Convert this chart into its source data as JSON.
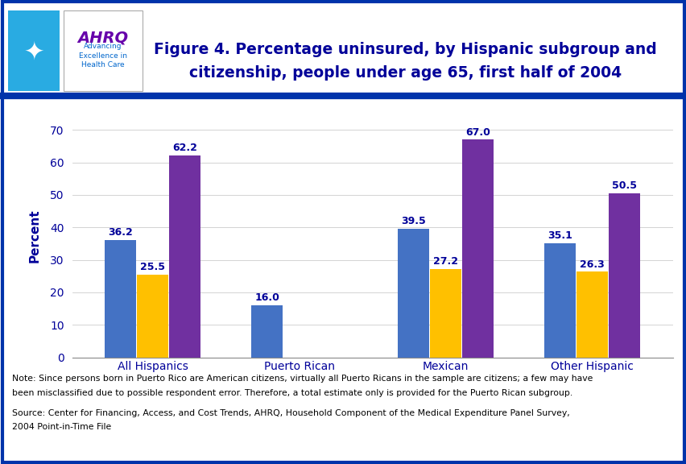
{
  "title_line1": "Figure 4. Percentage uninsured, by Hispanic subgroup and",
  "title_line2": "citizenship, people under age 65, first half of 2004",
  "categories": [
    "All Hispanics",
    "Puerto Rican",
    "Mexican",
    "Other Hispanic"
  ],
  "series": {
    "Total": [
      36.2,
      16.0,
      39.5,
      35.1
    ],
    "Citizen": [
      25.5,
      null,
      27.2,
      26.3
    ],
    "Not Citizen": [
      62.2,
      null,
      67.0,
      50.5
    ]
  },
  "colors": {
    "Total": "#4472C4",
    "Citizen": "#FFC000",
    "Not Citizen": "#7030A0"
  },
  "ylabel": "Percent",
  "ylim": [
    0,
    75
  ],
  "yticks": [
    0,
    10,
    20,
    30,
    40,
    50,
    60,
    70
  ],
  "bar_width": 0.22,
  "note_line1": "Note: Since persons born in Puerto Rico are American citizens, virtually all Puerto Ricans in the sample are citizens; a few may have",
  "note_line2": "been misclassified due to possible respondent error. Therefore, a total estimate only is provided for the Puerto Rican subgroup.",
  "source_line1": "Source: Center for Financing, Access, and Cost Trends, AHRQ, Household Component of the Medical Expenditure Panel Survey,",
  "source_line2": "2004 Point-in-Time File",
  "bg_color": "#FFFFFF",
  "outer_border_color": "#0033AA",
  "title_color": "#000099",
  "divider_color": "#0033AA",
  "header_bg": "#FFFFFF",
  "logo_bg": "#29ABE2",
  "logo_border_color": "#29ABE2",
  "text_color": "#000099",
  "note_color": "#000000",
  "tick_color": "#000099"
}
